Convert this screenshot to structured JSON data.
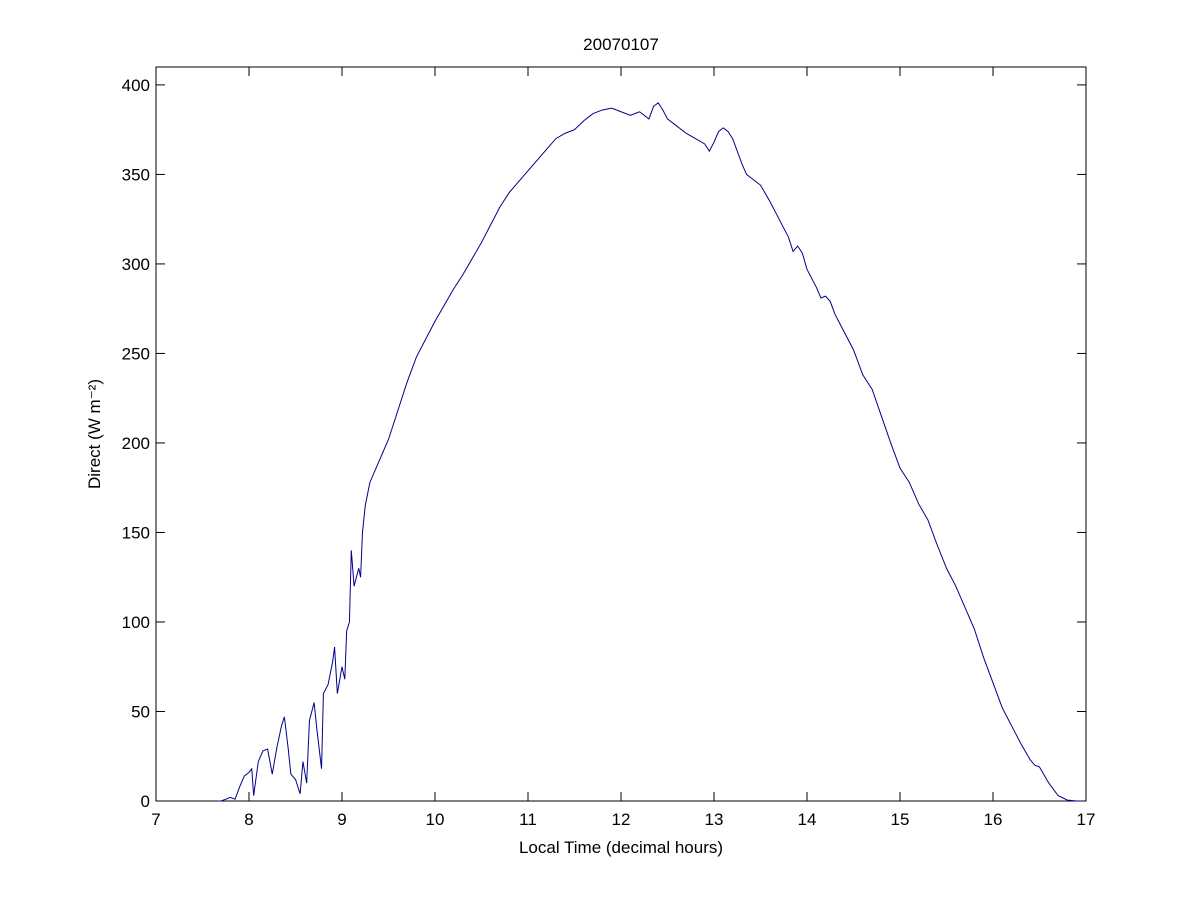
{
  "chart_data": {
    "type": "line",
    "title": "20070107",
    "xlabel": "Local Time (decimal hours)",
    "ylabel": "Direct (W m⁻²)",
    "xlim": [
      7,
      17
    ],
    "xticks": [
      7,
      8,
      9,
      10,
      11,
      12,
      13,
      14,
      15,
      16,
      17
    ],
    "ylim": [
      0,
      410
    ],
    "yticks": [
      0,
      50,
      100,
      150,
      200,
      250,
      300,
      350,
      400
    ],
    "grid": false,
    "series": [
      {
        "color": "#00008b",
        "x": [
          7.65,
          7.7,
          7.8,
          7.85,
          7.9,
          7.95,
          8.0,
          8.03,
          8.05,
          8.1,
          8.15,
          8.2,
          8.25,
          8.3,
          8.35,
          8.38,
          8.42,
          8.45,
          8.5,
          8.55,
          8.58,
          8.62,
          8.65,
          8.7,
          8.73,
          8.78,
          8.8,
          8.85,
          8.9,
          8.92,
          8.95,
          9.0,
          9.03,
          9.05,
          9.08,
          9.1,
          9.13,
          9.18,
          9.2,
          9.22,
          9.25,
          9.3,
          9.4,
          9.5,
          9.6,
          9.7,
          9.8,
          9.9,
          10.0,
          10.1,
          10.2,
          10.3,
          10.4,
          10.5,
          10.6,
          10.7,
          10.8,
          10.9,
          11.0,
          11.1,
          11.2,
          11.3,
          11.4,
          11.5,
          11.6,
          11.7,
          11.8,
          11.9,
          12.0,
          12.1,
          12.2,
          12.3,
          12.35,
          12.4,
          12.45,
          12.5,
          12.6,
          12.7,
          12.8,
          12.9,
          12.95,
          13.0,
          13.05,
          13.1,
          13.15,
          13.2,
          13.3,
          13.35,
          13.4,
          13.5,
          13.6,
          13.7,
          13.8,
          13.85,
          13.9,
          13.95,
          14.0,
          14.1,
          14.15,
          14.2,
          14.25,
          14.3,
          14.4,
          14.5,
          14.6,
          14.7,
          14.8,
          14.9,
          15.0,
          15.1,
          15.2,
          15.3,
          15.4,
          15.5,
          15.6,
          15.7,
          15.8,
          15.9,
          16.0,
          16.1,
          16.2,
          16.3,
          16.4,
          16.45,
          16.5,
          16.6,
          16.7,
          16.8,
          16.9,
          16.95
        ],
        "values": [
          0,
          0,
          2,
          1,
          8,
          14,
          16,
          18,
          3,
          22,
          28,
          29,
          15,
          30,
          42,
          47,
          30,
          15,
          12,
          4,
          22,
          10,
          45,
          55,
          40,
          18,
          60,
          65,
          78,
          86,
          60,
          75,
          68,
          95,
          100,
          140,
          120,
          130,
          125,
          150,
          165,
          178,
          190,
          202,
          218,
          234,
          248,
          258,
          268,
          277,
          286,
          294,
          303,
          312,
          322,
          332,
          340,
          346,
          352,
          358,
          364,
          370,
          373,
          375,
          380,
          384,
          386,
          387,
          385,
          383,
          385,
          381,
          388,
          390,
          386,
          381,
          377,
          373,
          370,
          367,
          363,
          368,
          374,
          376,
          374,
          370,
          356,
          350,
          348,
          344,
          335,
          325,
          315,
          307,
          310,
          306,
          297,
          287,
          281,
          282,
          279,
          272,
          262,
          252,
          238,
          230,
          215,
          200,
          186,
          178,
          166,
          157,
          143,
          130,
          120,
          108,
          96,
          80,
          66,
          52,
          42,
          32,
          23,
          20,
          19,
          10,
          3,
          0.5,
          0,
          0
        ]
      }
    ]
  }
}
